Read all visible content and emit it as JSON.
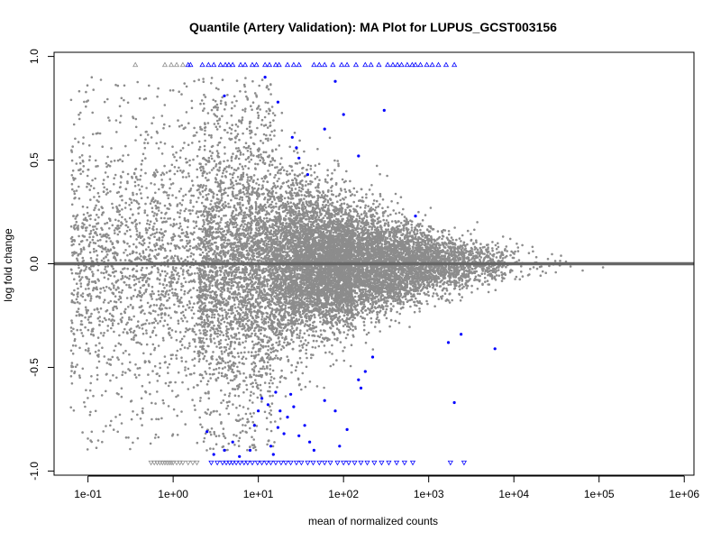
{
  "chart_data": {
    "type": "scatter",
    "title": "Quantile (Artery Validation): MA Plot for LUPUS_GCST003156",
    "xlabel": "mean of normalized counts",
    "ylabel": "log fold change",
    "x_scale": "log10",
    "xlim": [
      0.04,
      1300000
    ],
    "ylim": [
      -1.02,
      1.02
    ],
    "x_ticks": [
      {
        "value": 0.1,
        "label": "1e-01"
      },
      {
        "value": 1,
        "label": "1e+00"
      },
      {
        "value": 10,
        "label": "1e+01"
      },
      {
        "value": 100,
        "label": "1e+02"
      },
      {
        "value": 1000,
        "label": "1e+03"
      },
      {
        "value": 10000,
        "label": "1e+04"
      },
      {
        "value": 100000,
        "label": "1e+05"
      },
      {
        "value": 1000000,
        "label": "1e+06"
      }
    ],
    "y_ticks": [
      {
        "value": -1.0,
        "label": "-1.0"
      },
      {
        "value": -0.5,
        "label": "-0.5"
      },
      {
        "value": 0.0,
        "label": "0.0"
      },
      {
        "value": 0.5,
        "label": "0.5"
      },
      {
        "value": 1.0,
        "label": "1.0"
      }
    ],
    "reference_line": {
      "y": 0,
      "color": "#666666"
    },
    "grid": false,
    "legend": "none",
    "colors": {
      "non_significant": "#8c8c8c",
      "significant": "#0000ff",
      "axis": "#000000"
    },
    "points_description": "approximately 20,000 genes; grey = not significant, blue = significant; triangles at y = ±0.96 mark points clipped beyond the y-range",
    "series": [
      {
        "points_significant": [
          [
            4.0,
            0.81
          ],
          [
            12.0,
            0.9
          ],
          [
            17.0,
            0.78
          ],
          [
            25.0,
            0.61
          ],
          [
            28.0,
            0.56
          ],
          [
            30.0,
            0.51
          ],
          [
            38.0,
            0.43
          ],
          [
            60.0,
            0.65
          ],
          [
            80.0,
            0.88
          ],
          [
            100.0,
            0.72
          ],
          [
            150.0,
            0.52
          ],
          [
            300.0,
            0.74
          ],
          [
            700.0,
            0.23
          ],
          [
            6000.0,
            -0.41
          ],
          [
            2000.0,
            -0.67
          ],
          [
            2400.0,
            -0.34
          ],
          [
            1700.0,
            -0.38
          ],
          [
            220.0,
            -0.45
          ],
          [
            180.0,
            -0.52
          ],
          [
            160.0,
            -0.6
          ],
          [
            150.0,
            -0.56
          ],
          [
            110.0,
            -0.8
          ],
          [
            90.0,
            -0.88
          ],
          [
            80.0,
            -0.71
          ],
          [
            60.0,
            -0.66
          ],
          [
            45.0,
            -0.9
          ],
          [
            40.0,
            -0.86
          ],
          [
            35.0,
            -0.78
          ],
          [
            30.0,
            -0.83
          ],
          [
            26.0,
            -0.69
          ],
          [
            24.0,
            -0.63
          ],
          [
            22.0,
            -0.74
          ],
          [
            20.0,
            -0.82
          ],
          [
            18.0,
            -0.71
          ],
          [
            17.0,
            -0.79
          ],
          [
            16.0,
            -0.62
          ],
          [
            15.0,
            -0.92
          ],
          [
            14.0,
            -0.88
          ],
          [
            13.0,
            -0.68
          ],
          [
            11.0,
            -0.65
          ],
          [
            10.0,
            -0.71
          ],
          [
            9.0,
            -0.78
          ],
          [
            8.0,
            -0.9
          ],
          [
            6.0,
            -0.93
          ],
          [
            5.0,
            -0.86
          ],
          [
            4.0,
            -0.9
          ],
          [
            3.0,
            -0.92
          ],
          [
            2.5,
            -0.81
          ]
        ],
        "clipped_top_significant_x": [
          1.5,
          1.6,
          2.2,
          2.6,
          3.0,
          3.6,
          4.1,
          4.5,
          5.0,
          6.2,
          7.0,
          8.5,
          9.5,
          12.0,
          13.5,
          16.0,
          17.5,
          22.0,
          26.0,
          30.0,
          45.0,
          52.0,
          60.0,
          75.0,
          95.0,
          110.0,
          140.0,
          180.0,
          210.0,
          260.0,
          330.0,
          380.0,
          430.0,
          480.0,
          560.0,
          640.0,
          700.0,
          800.0,
          950.0,
          1100.0,
          1300.0,
          1600.0,
          2000.0
        ],
        "clipped_top_nonsig_x": [
          0.36,
          0.8,
          0.95,
          1.1,
          1.3
        ],
        "clipped_bottom_significant_x": [
          2.8,
          3.3,
          3.8,
          4.2,
          4.6,
          5.0,
          5.5,
          6.1,
          6.8,
          7.5,
          8.5,
          9.8,
          11.0,
          12.5,
          14.0,
          16.0,
          18.5,
          21.0,
          24.0,
          28.0,
          32.0,
          38.0,
          44.0,
          52.0,
          60.0,
          70.0,
          85.0,
          100.0,
          115.0,
          135.0,
          160.0,
          190.0,
          230.0,
          280.0,
          340.0,
          420.0,
          520.0,
          650.0,
          1800.0,
          2600.0
        ],
        "clipped_bottom_nonsig_x": [
          0.55,
          0.6,
          0.65,
          0.7,
          0.75,
          0.8,
          0.85,
          0.9,
          0.95,
          1.0,
          1.1,
          1.2,
          1.3,
          1.5,
          1.7,
          1.9
        ]
      }
    ]
  }
}
